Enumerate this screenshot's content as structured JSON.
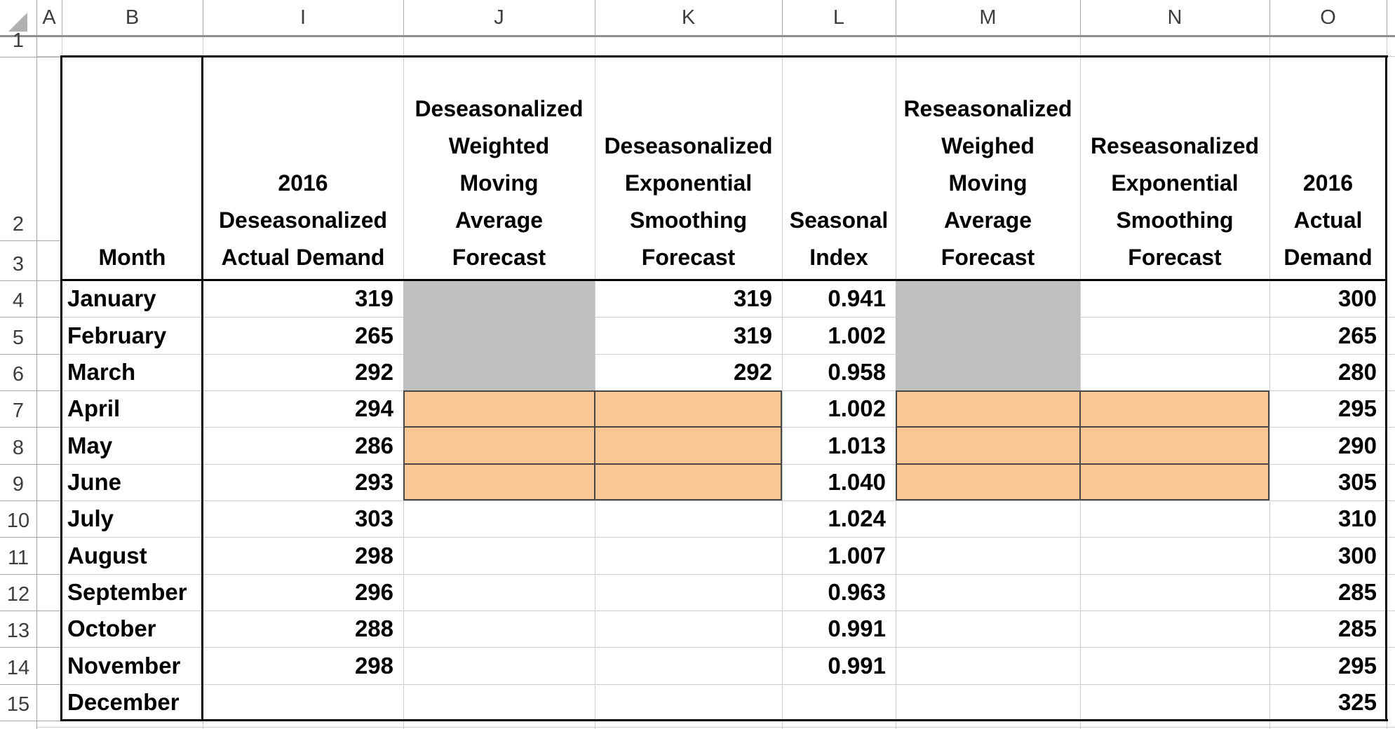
{
  "sheet": {
    "column_letters": [
      "A",
      "B",
      "I",
      "J",
      "K",
      "L",
      "M",
      "N",
      "O"
    ],
    "row_numbers": [
      "1",
      "2",
      "3",
      "4",
      "5",
      "6",
      "7",
      "8",
      "9",
      "10",
      "11",
      "12",
      "13",
      "14",
      "15"
    ],
    "headers": {
      "month": "Month",
      "col_i": "2016\nDeseasonalized\nActual Demand",
      "col_j": "Deseasonalized\nWeighted\nMoving\nAverage\nForecast",
      "col_k": "Deseasonalized\nExponential\nSmoothing\nForecast",
      "col_l": "Seasonal\nIndex",
      "col_m": "Reseasonalized\nWeighed\nMoving\nAverage\nForecast",
      "col_n": "Reseasonalized\nExponential\nSmoothing\nForecast",
      "col_o": "2016\nActual\nDemand"
    },
    "rows": [
      {
        "rownum": "4",
        "month": "January",
        "i": "319",
        "j": "",
        "k": "319",
        "l": "0.941",
        "m": "",
        "n": "",
        "o": "300",
        "fills": {
          "j": "gray",
          "m": "gray"
        }
      },
      {
        "rownum": "5",
        "month": "February",
        "i": "265",
        "j": "",
        "k": "319",
        "l": "1.002",
        "m": "",
        "n": "",
        "o": "265",
        "fills": {
          "j": "gray",
          "m": "gray"
        }
      },
      {
        "rownum": "6",
        "month": "March",
        "i": "292",
        "j": "",
        "k": "292",
        "l": "0.958",
        "m": "",
        "n": "",
        "o": "280",
        "fills": {
          "j": "gray",
          "m": "gray"
        }
      },
      {
        "rownum": "7",
        "month": "April",
        "i": "294",
        "j": "",
        "k": "",
        "l": "1.002",
        "m": "",
        "n": "",
        "o": "295",
        "fills": {
          "j": "orange",
          "k": "orange",
          "m": "orange",
          "n": "orange"
        }
      },
      {
        "rownum": "8",
        "month": "May",
        "i": "286",
        "j": "",
        "k": "",
        "l": "1.013",
        "m": "",
        "n": "",
        "o": "290",
        "fills": {
          "j": "orange",
          "k": "orange",
          "m": "orange",
          "n": "orange"
        }
      },
      {
        "rownum": "9",
        "month": "June",
        "i": "293",
        "j": "",
        "k": "",
        "l": "1.040",
        "m": "",
        "n": "",
        "o": "305",
        "fills": {
          "j": "orange",
          "k": "orange",
          "m": "orange",
          "n": "orange"
        }
      },
      {
        "rownum": "10",
        "month": "July",
        "i": "303",
        "j": "",
        "k": "",
        "l": "1.024",
        "m": "",
        "n": "",
        "o": "310",
        "fills": {}
      },
      {
        "rownum": "11",
        "month": "August",
        "i": "298",
        "j": "",
        "k": "",
        "l": "1.007",
        "m": "",
        "n": "",
        "o": "300",
        "fills": {}
      },
      {
        "rownum": "12",
        "month": "September",
        "i": "296",
        "j": "",
        "k": "",
        "l": "0.963",
        "m": "",
        "n": "",
        "o": "285",
        "fills": {}
      },
      {
        "rownum": "13",
        "month": "October",
        "i": "288",
        "j": "",
        "k": "",
        "l": "0.991",
        "m": "",
        "n": "",
        "o": "285",
        "fills": {}
      },
      {
        "rownum": "14",
        "month": "November",
        "i": "298",
        "j": "",
        "k": "",
        "l": "0.991",
        "m": "",
        "n": "",
        "o": "295",
        "fills": {}
      },
      {
        "rownum": "15",
        "month": "December",
        "i": "",
        "j": "",
        "k": "",
        "l": "",
        "m": "",
        "n": "",
        "o": "325",
        "fills": {}
      }
    ],
    "fills": {
      "gray": "#BFBFBF",
      "orange": "#FAC693"
    }
  }
}
